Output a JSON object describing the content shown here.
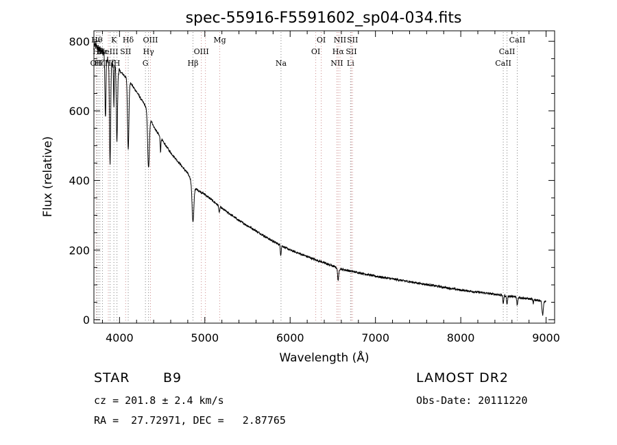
{
  "chart_data": {
    "type": "line",
    "title": "spec-55916-F5591602_sp04-034.fits",
    "xlabel": "Wavelength (Å)",
    "ylabel": "Flux (relative)",
    "xlim": [
      3700,
      9100
    ],
    "ylim": [
      -10,
      830
    ],
    "xticks": [
      4000,
      5000,
      6000,
      7000,
      8000,
      9000
    ],
    "yticks": [
      0,
      200,
      400,
      600,
      800
    ],
    "continuum": {
      "x": [
        3700,
        3800,
        3900,
        4000,
        4100,
        4200,
        4300,
        4400,
        4500,
        4600,
        4700,
        4800,
        4900,
        5000,
        5200,
        5400,
        5600,
        5800,
        6000,
        6300,
        6600,
        7000,
        7500,
        8000,
        8500,
        8800,
        9000
      ],
      "y": [
        790,
        770,
        740,
        715,
        690,
        655,
        615,
        555,
        515,
        480,
        450,
        420,
        375,
        360,
        320,
        285,
        255,
        225,
        200,
        172,
        145,
        125,
        105,
        85,
        70,
        60,
        52
      ]
    },
    "absorption": [
      {
        "wl": 3835,
        "depth": 180,
        "w": 6
      },
      {
        "wl": 3889,
        "depth": 290,
        "w": 7
      },
      {
        "wl": 3934,
        "depth": 120,
        "w": 4
      },
      {
        "wl": 3970,
        "depth": 210,
        "w": 7
      },
      {
        "wl": 4102,
        "depth": 200,
        "w": 8
      },
      {
        "wl": 4340,
        "depth": 155,
        "w": 10
      },
      {
        "wl": 4481,
        "depth": 40,
        "w": 4
      },
      {
        "wl": 4861,
        "depth": 110,
        "w": 11
      },
      {
        "wl": 5169,
        "depth": 20,
        "w": 5
      },
      {
        "wl": 5890,
        "depth": 28,
        "w": 5
      },
      {
        "wl": 6563,
        "depth": 35,
        "w": 7
      },
      {
        "wl": 8498,
        "depth": 22,
        "w": 6
      },
      {
        "wl": 8542,
        "depth": 24,
        "w": 6
      },
      {
        "wl": 8662,
        "depth": 22,
        "w": 6
      },
      {
        "wl": 8850,
        "depth": 14,
        "w": 4
      },
      {
        "wl": 8960,
        "depth": 40,
        "w": 8
      }
    ],
    "line_markers": [
      {
        "wl": 3727,
        "label": "OII",
        "row": 3,
        "color": "#cc8a8a"
      },
      {
        "wl": 3734,
        "label": "Hθ",
        "row": 1,
        "color": "#7f7f7f"
      },
      {
        "wl": 3750,
        "label": "Hη",
        "row": 2,
        "color": "#7f7f7f"
      },
      {
        "wl": 3770,
        "label": "Hζ",
        "row": 3,
        "color": "#7f7f7f"
      },
      {
        "wl": 3800,
        "label": "Hε",
        "row": 2,
        "color": "#7f7f7f"
      },
      {
        "wl": 3869,
        "label": "NeIII",
        "row": 2,
        "color": "#cc8a8a"
      },
      {
        "wl": 3889,
        "label": "Hζ",
        "row": 3,
        "color": "#7f7f7f"
      },
      {
        "wl": 3934,
        "label": "K",
        "row": 1,
        "color": "#7f7f7f"
      },
      {
        "wl": 3970,
        "label": "H",
        "row": 3,
        "color": "#7f7f7f"
      },
      {
        "wl": 4072,
        "label": "SII",
        "row": 2,
        "color": "#cc8a8a"
      },
      {
        "wl": 4102,
        "label": "Hδ",
        "row": 1,
        "color": "#7f7f7f"
      },
      {
        "wl": 4304,
        "label": "G",
        "row": 3,
        "color": "#7f7f7f"
      },
      {
        "wl": 4340,
        "label": "Hγ",
        "row": 2,
        "color": "#7f7f7f"
      },
      {
        "wl": 4363,
        "label": "OIII",
        "row": 1,
        "color": "#cc8a8a"
      },
      {
        "wl": 4861,
        "label": "Hβ",
        "row": 3,
        "color": "#7f7f7f"
      },
      {
        "wl": 4959,
        "label": "OIII",
        "row": 2,
        "color": "#cc8a8a"
      },
      {
        "wl": 5007,
        "label": "",
        "row": 2,
        "color": "#cc8a8a"
      },
      {
        "wl": 5175,
        "label": "Mg",
        "row": 1,
        "color": "#cc8a8a"
      },
      {
        "wl": 5893,
        "label": "Na",
        "row": 3,
        "color": "#7f7f7f"
      },
      {
        "wl": 6300,
        "label": "OI",
        "row": 2,
        "color": "#cc8a8a"
      },
      {
        "wl": 6364,
        "label": "OI",
        "row": 1,
        "color": "#cc8a8a"
      },
      {
        "wl": 6548,
        "label": "NII",
        "row": 3,
        "color": "#cc8a8a"
      },
      {
        "wl": 6563,
        "label": "Hα",
        "row": 2,
        "color": "#cc8a8a"
      },
      {
        "wl": 6584,
        "label": "NII",
        "row": 1,
        "color": "#cc8a8a"
      },
      {
        "wl": 6708,
        "label": "Li",
        "row": 3,
        "color": "#7f7f7f"
      },
      {
        "wl": 6717,
        "label": "SII",
        "row": 2,
        "color": "#cc8a8a"
      },
      {
        "wl": 6731,
        "label": "SII",
        "row": 1,
        "color": "#cc8a8a"
      },
      {
        "wl": 8498,
        "label": "CaII",
        "row": 3,
        "color": "#7f7f7f"
      },
      {
        "wl": 8542,
        "label": "CaII",
        "row": 2,
        "color": "#7f7f7f"
      },
      {
        "wl": 8662,
        "label": "CaII",
        "row": 1,
        "color": "#7f7f7f"
      }
    ]
  },
  "info": {
    "object_class": "STAR",
    "subclass": "B9",
    "survey": "LAMOST DR2",
    "cz": "cz = 201.8 ± 2.4 km/s",
    "obs_date": "Obs-Date: 20111220",
    "radec": "RA =  27.72971, DEC =   2.87765"
  }
}
